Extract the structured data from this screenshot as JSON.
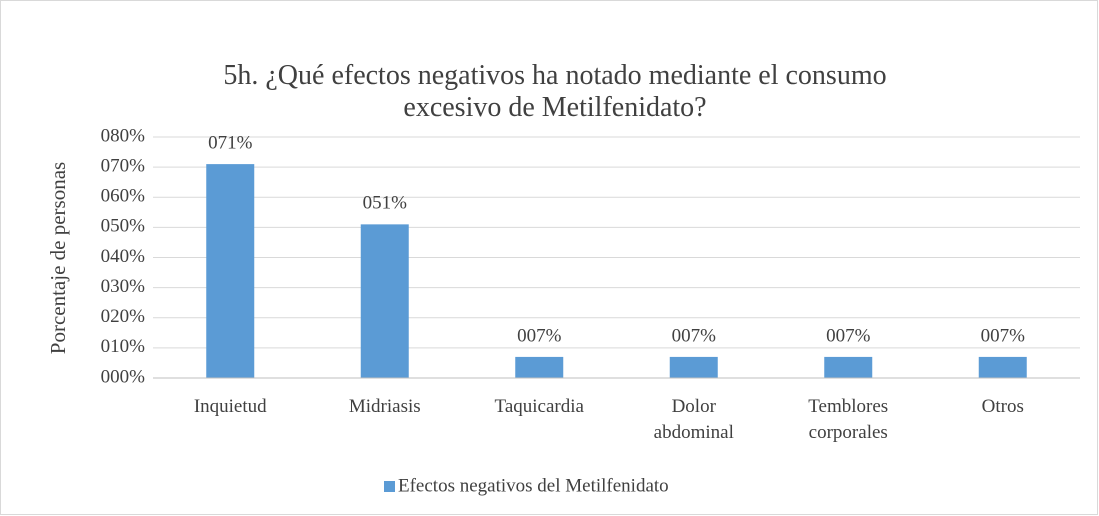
{
  "chart_data": {
    "type": "bar",
    "title": "5h. ¿Qué efectos negativos ha notado mediante el consumo excesivo de Metilfenidato?",
    "y_label": "Porcentaje de personas",
    "categories": [
      "Inquietud",
      "Midriasis",
      "Taquicardia",
      "Dolor abdominal",
      "Temblores corporales",
      "Otros"
    ],
    "series": [
      {
        "name": "Efectos negativos del Metilfenidato",
        "color": "#5b9bd5",
        "values": [
          71,
          51,
          7,
          7,
          7,
          7
        ],
        "value_labels": [
          "071%",
          "051%",
          "007%",
          "007%",
          "007%",
          "007%"
        ]
      }
    ],
    "ylim": [
      0,
      80
    ],
    "yticks": [
      {
        "value": 0,
        "label": "000%"
      },
      {
        "value": 10,
        "label": "010%"
      },
      {
        "value": 20,
        "label": "020%"
      },
      {
        "value": 30,
        "label": "030%"
      },
      {
        "value": 40,
        "label": "040%"
      },
      {
        "value": 50,
        "label": "050%"
      },
      {
        "value": 60,
        "label": "060%"
      },
      {
        "value": 70,
        "label": "070%"
      },
      {
        "value": 80,
        "label": "080%"
      }
    ],
    "grid": true,
    "legend": "bottom"
  }
}
